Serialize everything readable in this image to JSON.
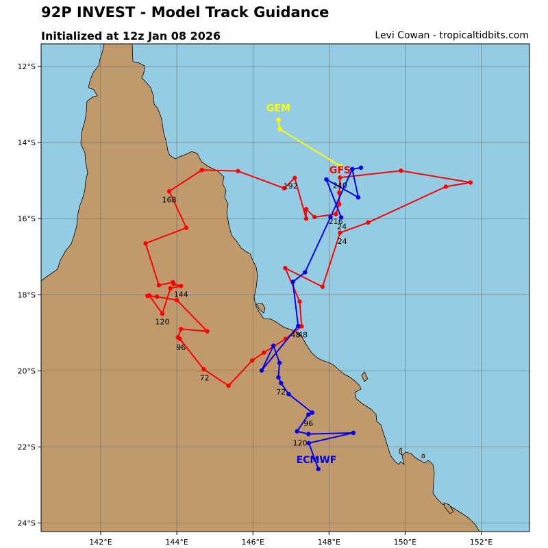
{
  "header": {
    "title": "92P INVEST - Model Track Guidance",
    "subtitle": "Initialized at 12z Jan 08 2026",
    "credit": "Levi Cowan - tropicaltidbits.com"
  },
  "colors": {
    "ocean": "#94cde3",
    "land": "#c09a6d",
    "grid": "#5b5b5b"
  },
  "axes": {
    "lon_ticks": [
      "142°E",
      "144°E",
      "146°E",
      "148°E",
      "150°E",
      "152°E"
    ],
    "lat_ticks": [
      "12°S",
      "14°S",
      "16°S",
      "18°S",
      "20°S",
      "22°S",
      "24°S"
    ]
  },
  "tracks": [
    {
      "model": "GFS",
      "color": "#ff0000",
      "points": [
        {
          "lon": 148.29,
          "lat": -16.37
        },
        {
          "lon": 149.03,
          "lat": -16.1
        },
        {
          "lon": 151.07,
          "lat": -15.16
        },
        {
          "lon": 151.72,
          "lat": -15.05
        },
        {
          "lon": 149.89,
          "lat": -14.74
        },
        {
          "lon": 148.29,
          "lat": -14.92
        },
        {
          "lon": 148.27,
          "lat": -15.32
        },
        {
          "lon": 148.27,
          "lat": -15.62
        },
        {
          "lon": 148.18,
          "lat": -15.88
        },
        {
          "lon": 147.62,
          "lat": -15.96
        },
        {
          "lon": 147.4,
          "lat": -15.75
        },
        {
          "lon": 147.4,
          "lat": -16.0
        },
        {
          "lon": 147.1,
          "lat": -14.93
        },
        {
          "lon": 146.82,
          "lat": -15.2
        },
        {
          "lon": 145.61,
          "lat": -14.75
        },
        {
          "lon": 144.66,
          "lat": -14.72
        },
        {
          "lon": 143.8,
          "lat": -15.28
        },
        {
          "lon": 144.25,
          "lat": -16.24
        },
        {
          "lon": 143.18,
          "lat": -16.65
        },
        {
          "lon": 143.53,
          "lat": -17.75
        },
        {
          "lon": 143.9,
          "lat": -17.67
        },
        {
          "lon": 143.92,
          "lat": -17.72
        },
        {
          "lon": 144.11,
          "lat": -17.77
        },
        {
          "lon": 143.83,
          "lat": -17.83
        },
        {
          "lon": 143.62,
          "lat": -18.5
        },
        {
          "lon": 143.28,
          "lat": -18.02
        },
        {
          "lon": 143.23,
          "lat": -18.03
        },
        {
          "lon": 143.48,
          "lat": -18.05
        },
        {
          "lon": 144.0,
          "lat": -18.14
        },
        {
          "lon": 144.8,
          "lat": -18.96
        },
        {
          "lon": 144.11,
          "lat": -18.9
        },
        {
          "lon": 144.03,
          "lat": -19.12
        },
        {
          "lon": 144.08,
          "lat": -19.16
        },
        {
          "lon": 144.71,
          "lat": -19.96
        },
        {
          "lon": 145.36,
          "lat": -20.39
        },
        {
          "lon": 145.98,
          "lat": -19.73
        },
        {
          "lon": 146.29,
          "lat": -19.52
        },
        {
          "lon": 146.86,
          "lat": -19.16
        },
        {
          "lon": 147.28,
          "lat": -18.83
        },
        {
          "lon": 147.23,
          "lat": -18.18
        },
        {
          "lon": 146.85,
          "lat": -17.3
        },
        {
          "lon": 147.83,
          "lat": -17.79
        },
        {
          "lon": 148.29,
          "lat": -16.37
        }
      ],
      "labels": [
        {
          "text": "24",
          "lon": 148.35,
          "lat": -16.59
        },
        {
          "text": "48",
          "lon": 147.31,
          "lat": -19.05
        },
        {
          "text": "72",
          "lon": 144.73,
          "lat": -20.18
        },
        {
          "text": "96",
          "lon": 144.11,
          "lat": -19.38
        },
        {
          "text": "120",
          "lon": 143.62,
          "lat": -18.71
        },
        {
          "text": "144",
          "lon": 144.11,
          "lat": -17.99
        },
        {
          "text": "168",
          "lon": 143.8,
          "lat": -15.5
        },
        {
          "text": "192",
          "lon": 146.99,
          "lat": -15.14
        },
        {
          "text": "216",
          "lon": 148.18,
          "lat": -16.07
        },
        {
          "text": "240",
          "lon": 148.29,
          "lat": -15.12
        }
      ],
      "model_label": {
        "text": "GFS",
        "lon": 148.29,
        "lat": -14.72
      }
    },
    {
      "model": "ECMWF",
      "color": "#0000ee",
      "points": [
        {
          "lon": 148.32,
          "lat": -15.97
        },
        {
          "lon": 147.93,
          "lat": -14.97
        },
        {
          "lon": 148.77,
          "lat": -15.44
        },
        {
          "lon": 148.61,
          "lat": -14.7
        },
        {
          "lon": 148.84,
          "lat": -14.66
        },
        {
          "lon": 148.61,
          "lat": -14.7
        },
        {
          "lon": 148.04,
          "lat": -15.96
        },
        {
          "lon": 147.37,
          "lat": -17.41
        },
        {
          "lon": 147.05,
          "lat": -17.66
        },
        {
          "lon": 147.19,
          "lat": -18.82
        },
        {
          "lon": 146.23,
          "lat": -19.99
        },
        {
          "lon": 146.54,
          "lat": -19.34
        },
        {
          "lon": 146.7,
          "lat": -19.79
        },
        {
          "lon": 146.67,
          "lat": -20.17
        },
        {
          "lon": 146.74,
          "lat": -20.32
        },
        {
          "lon": 146.94,
          "lat": -20.61
        },
        {
          "lon": 147.56,
          "lat": -21.1
        },
        {
          "lon": 147.46,
          "lat": -21.15
        },
        {
          "lon": 147.16,
          "lat": -21.59
        },
        {
          "lon": 147.46,
          "lat": -21.66
        },
        {
          "lon": 148.64,
          "lat": -21.63
        },
        {
          "lon": 147.47,
          "lat": -21.9
        },
        {
          "lon": 147.72,
          "lat": -22.58
        }
      ],
      "labels": [
        {
          "text": "24",
          "lon": 148.34,
          "lat": -16.2
        },
        {
          "text": "48",
          "lon": 147.12,
          "lat": -19.05
        },
        {
          "text": "72",
          "lon": 146.74,
          "lat": -20.55
        },
        {
          "text": "96",
          "lon": 147.46,
          "lat": -21.38
        },
        {
          "text": "120",
          "lon": 147.24,
          "lat": -21.89
        }
      ],
      "model_label": {
        "text": "ECMWF",
        "lon": 147.67,
        "lat": -22.33
      }
    },
    {
      "model": "GEM",
      "color": "#ffff00",
      "points": [
        {
          "lon": 146.67,
          "lat": -13.4
        },
        {
          "lon": 146.71,
          "lat": -13.65
        },
        {
          "lon": 148.3,
          "lat": -14.62
        }
      ],
      "labels": [],
      "model_label": {
        "text": "GEM",
        "lon": 146.67,
        "lat": -13.09
      }
    }
  ]
}
